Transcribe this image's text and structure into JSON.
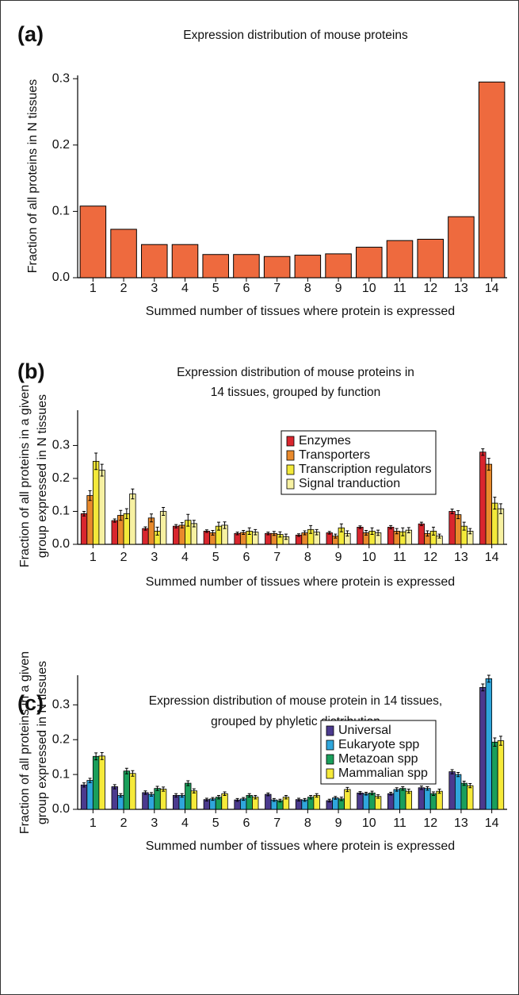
{
  "chart_data": [
    {
      "type": "bar",
      "panel_label": "(a)",
      "title": [
        "Expression distribution of mouse proteins"
      ],
      "y_label": [
        "Fraction of all proteins in N tissues"
      ],
      "x_label": "Summed number of tissues where protein is expressed",
      "categories": [
        "1",
        "2",
        "3",
        "4",
        "5",
        "6",
        "7",
        "8",
        "9",
        "10",
        "11",
        "12",
        "13",
        "14"
      ],
      "values": [
        0.108,
        0.073,
        0.05,
        0.05,
        0.035,
        0.035,
        0.032,
        0.034,
        0.036,
        0.046,
        0.056,
        0.058,
        0.092,
        0.295
      ],
      "color": "#ee6a3e",
      "ylim": [
        0,
        0.305
      ],
      "yticks": [
        {
          "value": 0,
          "label": "0.0"
        },
        0.1,
        0.2,
        0.3
      ]
    },
    {
      "type": "grouped_bar",
      "panel_label": "(b)",
      "title": [
        "Expression distribution of mouse proteins in",
        "14 tissues, grouped by function"
      ],
      "y_label": [
        "Fraction of all proteins in a given",
        "group expressed in N tissues"
      ],
      "x_label": "Summed number of tissues where protein is expressed",
      "categories": [
        "1",
        "2",
        "3",
        "4",
        "5",
        "6",
        "7",
        "8",
        "9",
        "10",
        "11",
        "12",
        "13",
        "14"
      ],
      "series": [
        {
          "name": "Enzymes",
          "color": "#d9262e",
          "values": [
            0.093,
            0.072,
            0.048,
            0.055,
            0.04,
            0.033,
            0.033,
            0.028,
            0.035,
            0.052,
            0.052,
            0.062,
            0.1,
            0.28
          ],
          "errors": [
            0.007,
            0.005,
            0.005,
            0.005,
            0.004,
            0.004,
            0.004,
            0.004,
            0.004,
            0.004,
            0.005,
            0.005,
            0.007,
            0.01
          ]
        },
        {
          "name": "Transporters",
          "color": "#e98a2c",
          "values": [
            0.148,
            0.088,
            0.08,
            0.058,
            0.035,
            0.036,
            0.033,
            0.035,
            0.025,
            0.035,
            0.04,
            0.033,
            0.09,
            0.243
          ],
          "errors": [
            0.015,
            0.015,
            0.012,
            0.008,
            0.007,
            0.006,
            0.006,
            0.006,
            0.006,
            0.007,
            0.008,
            0.008,
            0.012,
            0.018
          ]
        },
        {
          "name": "Transcription regulators",
          "color": "#f3e93a",
          "values": [
            0.252,
            0.093,
            0.04,
            0.073,
            0.055,
            0.04,
            0.03,
            0.045,
            0.05,
            0.04,
            0.038,
            0.04,
            0.055,
            0.125
          ],
          "errors": [
            0.025,
            0.015,
            0.012,
            0.018,
            0.012,
            0.01,
            0.008,
            0.012,
            0.012,
            0.01,
            0.012,
            0.012,
            0.012,
            0.018
          ]
        },
        {
          "name": "Signal tranduction",
          "color": "#f7f1a2",
          "values": [
            0.225,
            0.153,
            0.1,
            0.063,
            0.058,
            0.037,
            0.023,
            0.037,
            0.033,
            0.035,
            0.043,
            0.025,
            0.04,
            0.108
          ],
          "errors": [
            0.018,
            0.015,
            0.012,
            0.01,
            0.01,
            0.008,
            0.008,
            0.008,
            0.008,
            0.008,
            0.008,
            0.006,
            0.008,
            0.015
          ]
        }
      ],
      "legend": "upper right",
      "ylim": [
        0,
        0.407
      ],
      "yticks": [
        {
          "value": 0,
          "label": "0.0"
        },
        0.1,
        0.2,
        0.3
      ]
    },
    {
      "type": "grouped_bar",
      "panel_label": "(c)",
      "title": [
        "Expression distribution of mouse protein in 14 tissues,",
        "grouped by phyletic distribution"
      ],
      "y_label": [
        "Fraction of all proteins in a given",
        "group expressed in N tissues"
      ],
      "x_label": "Summed number of tissues where protein is expressed",
      "categories": [
        "1",
        "2",
        "3",
        "4",
        "5",
        "6",
        "7",
        "8",
        "9",
        "10",
        "11",
        "12",
        "13",
        "14"
      ],
      "series": [
        {
          "name": "Universal",
          "color": "#4b3a8e",
          "values": [
            0.07,
            0.065,
            0.048,
            0.04,
            0.028,
            0.027,
            0.043,
            0.028,
            0.025,
            0.047,
            0.045,
            0.062,
            0.108,
            0.35
          ],
          "errors": [
            0.006,
            0.006,
            0.005,
            0.005,
            0.004,
            0.004,
            0.004,
            0.004,
            0.004,
            0.004,
            0.004,
            0.005,
            0.006,
            0.01
          ]
        },
        {
          "name": "Eukaryote spp",
          "color": "#2fa6dc",
          "values": [
            0.083,
            0.04,
            0.043,
            0.04,
            0.03,
            0.03,
            0.027,
            0.027,
            0.033,
            0.045,
            0.057,
            0.06,
            0.1,
            0.375
          ],
          "errors": [
            0.006,
            0.005,
            0.005,
            0.005,
            0.004,
            0.004,
            0.004,
            0.004,
            0.004,
            0.004,
            0.005,
            0.005,
            0.006,
            0.01
          ]
        },
        {
          "name": "Metazoan spp",
          "color": "#1a9f5b",
          "values": [
            0.152,
            0.11,
            0.06,
            0.075,
            0.035,
            0.04,
            0.025,
            0.035,
            0.03,
            0.047,
            0.06,
            0.045,
            0.075,
            0.193
          ],
          "errors": [
            0.01,
            0.008,
            0.006,
            0.007,
            0.005,
            0.005,
            0.004,
            0.005,
            0.005,
            0.005,
            0.005,
            0.005,
            0.006,
            0.012
          ]
        },
        {
          "name": "Mammalian spp",
          "color": "#f6ea3a",
          "values": [
            0.153,
            0.103,
            0.058,
            0.053,
            0.045,
            0.035,
            0.035,
            0.04,
            0.057,
            0.037,
            0.052,
            0.052,
            0.068,
            0.197
          ],
          "errors": [
            0.01,
            0.008,
            0.006,
            0.006,
            0.005,
            0.005,
            0.005,
            0.005,
            0.006,
            0.005,
            0.006,
            0.006,
            0.006,
            0.013
          ]
        }
      ],
      "legend": "upper right",
      "ylim": [
        0,
        0.385
      ],
      "yticks": [
        {
          "value": 0,
          "label": "0.0"
        },
        0.1,
        0.2,
        0.3
      ]
    }
  ]
}
